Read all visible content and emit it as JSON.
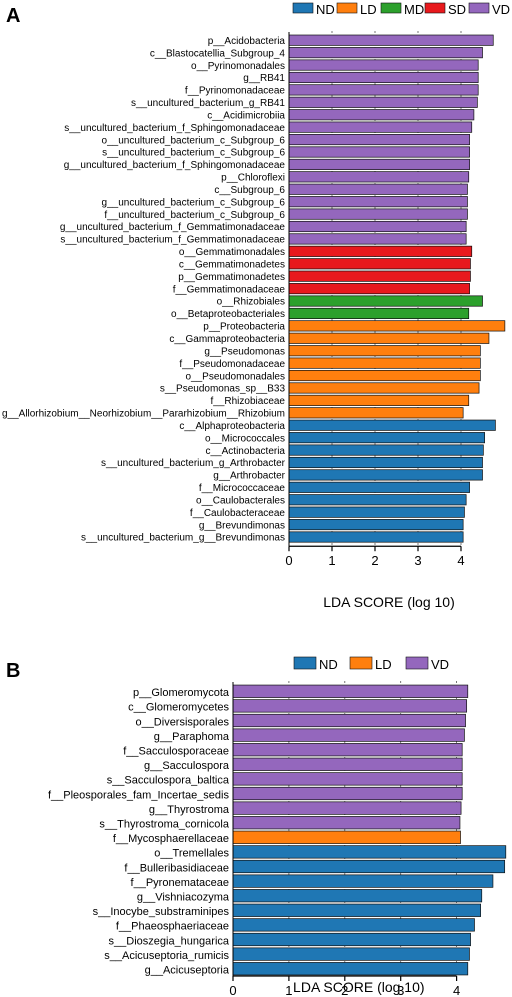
{
  "colors": {
    "ND": "#1f77b4",
    "LD": "#ff7f0e",
    "MD": "#2ca02c",
    "SD": "#e8191d",
    "VD": "#9467bd"
  },
  "chart_data": [
    {
      "panel": "A",
      "type": "bar",
      "orientation": "horizontal",
      "xlabel": "LDA SCORE (log 10)",
      "xlim": [
        0,
        5
      ],
      "xticks": [
        0,
        1,
        2,
        3,
        4
      ],
      "grid": "dashed vertical at ticks",
      "legend": {
        "placement": "top-right",
        "entries": [
          "ND",
          "LD",
          "MD",
          "SD",
          "VD"
        ]
      },
      "bars": [
        {
          "label": "p__Acidobacteria",
          "value": 4.75,
          "group": "VD"
        },
        {
          "label": "c__Blastocatellia_Subgroup_4",
          "value": 4.5,
          "group": "VD"
        },
        {
          "label": "o__Pyrinomonadales",
          "value": 4.4,
          "group": "VD"
        },
        {
          "label": "g__RB41",
          "value": 4.4,
          "group": "VD"
        },
        {
          "label": "f__Pyrinomonadaceae",
          "value": 4.4,
          "group": "VD"
        },
        {
          "label": "s__uncultured_bacterium_g_RB41",
          "value": 4.38,
          "group": "VD"
        },
        {
          "label": "c__Acidimicrobiia",
          "value": 4.3,
          "group": "VD"
        },
        {
          "label": "s__uncultured_bacterium_f_Sphingomonadaceae",
          "value": 4.25,
          "group": "VD"
        },
        {
          "label": "o__uncultured_bacterium_c_Subgroup_6",
          "value": 4.2,
          "group": "VD"
        },
        {
          "label": "s__uncultured_bacterium_c_Subgroup_6",
          "value": 4.2,
          "group": "VD"
        },
        {
          "label": "g__uncultured_bacterium_f_Sphingomonadaceae",
          "value": 4.2,
          "group": "VD"
        },
        {
          "label": "p__Chloroflexi",
          "value": 4.18,
          "group": "VD"
        },
        {
          "label": "c__Subgroup_6",
          "value": 4.15,
          "group": "VD"
        },
        {
          "label": "g__uncultured_bacterium_c_Subgroup_6",
          "value": 4.15,
          "group": "VD"
        },
        {
          "label": "f__uncultured_bacterium_c_Subgroup_6",
          "value": 4.15,
          "group": "VD"
        },
        {
          "label": "g__uncultured_bacterium_f_Gemmatimonadaceae",
          "value": 4.12,
          "group": "VD"
        },
        {
          "label": "s__uncultured_bacterium_f_Gemmatimonadaceae",
          "value": 4.12,
          "group": "VD"
        },
        {
          "label": "o__Gemmatimonadales",
          "value": 4.25,
          "group": "SD"
        },
        {
          "label": "c__Gemmatimonadetes",
          "value": 4.22,
          "group": "SD"
        },
        {
          "label": "p__Gemmatimonadetes",
          "value": 4.22,
          "group": "SD"
        },
        {
          "label": "f__Gemmatimonadaceae",
          "value": 4.2,
          "group": "SD"
        },
        {
          "label": "o__Rhizobiales",
          "value": 4.5,
          "group": "MD"
        },
        {
          "label": "o__Betaproteobacteriales",
          "value": 4.18,
          "group": "MD"
        },
        {
          "label": "p__Proteobacteria",
          "value": 5.02,
          "group": "LD"
        },
        {
          "label": "c__Gammaproteobacteria",
          "value": 4.65,
          "group": "LD"
        },
        {
          "label": "g__Pseudomonas",
          "value": 4.45,
          "group": "LD"
        },
        {
          "label": "f__Pseudomonadaceae",
          "value": 4.45,
          "group": "LD"
        },
        {
          "label": "o__Pseudomonadales",
          "value": 4.45,
          "group": "LD"
        },
        {
          "label": "s__Pseudomonas_sp__B33",
          "value": 4.42,
          "group": "LD"
        },
        {
          "label": "f__Rhizobiaceae",
          "value": 4.18,
          "group": "LD"
        },
        {
          "label": "g__Allorhizobium__Neorhizobium__Pararhizobium__Rhizobium",
          "value": 4.05,
          "group": "LD"
        },
        {
          "label": "c__Alphaproteobacteria",
          "value": 4.8,
          "group": "ND"
        },
        {
          "label": "o__Micrococcales",
          "value": 4.55,
          "group": "ND"
        },
        {
          "label": "c__Actinobacteria",
          "value": 4.52,
          "group": "ND"
        },
        {
          "label": "s__uncultured_bacterium_g_Arthrobacter",
          "value": 4.5,
          "group": "ND"
        },
        {
          "label": "g__Arthrobacter",
          "value": 4.5,
          "group": "ND"
        },
        {
          "label": "f__Micrococcaceae",
          "value": 4.2,
          "group": "ND"
        },
        {
          "label": "o__Caulobacterales",
          "value": 4.12,
          "group": "ND"
        },
        {
          "label": "f__Caulobacteraceae",
          "value": 4.08,
          "group": "ND"
        },
        {
          "label": "g__Brevundimonas",
          "value": 4.05,
          "group": "ND"
        },
        {
          "label": "s__uncultured_bacterium_g__Brevundimonas",
          "value": 4.05,
          "group": "ND"
        }
      ]
    },
    {
      "panel": "B",
      "type": "bar",
      "orientation": "horizontal",
      "xlabel": "LDA SCORE (log 10)",
      "xlim": [
        0,
        4.95
      ],
      "xticks": [
        0,
        1,
        2,
        3,
        4
      ],
      "grid": "dashed vertical at ticks",
      "legend": {
        "placement": "top-right",
        "entries": [
          "ND",
          "LD",
          "VD"
        ]
      },
      "bars": [
        {
          "label": "p__Glomeromycota",
          "value": 4.2,
          "group": "VD"
        },
        {
          "label": "c__Glomeromycetes",
          "value": 4.18,
          "group": "VD"
        },
        {
          "label": "o__Diversisporales",
          "value": 4.16,
          "group": "VD"
        },
        {
          "label": "g__Paraphoma",
          "value": 4.14,
          "group": "VD"
        },
        {
          "label": "f__Sacculosporaceae",
          "value": 4.1,
          "group": "VD"
        },
        {
          "label": "g__Sacculospora",
          "value": 4.1,
          "group": "VD"
        },
        {
          "label": "s__Sacculospora_baltica",
          "value": 4.1,
          "group": "VD"
        },
        {
          "label": "f__Pleosporales_fam_Incertae_sedis",
          "value": 4.1,
          "group": "VD"
        },
        {
          "label": "g__Thyrostroma",
          "value": 4.08,
          "group": "VD"
        },
        {
          "label": "s__Thyrostroma_cornicola",
          "value": 4.06,
          "group": "VD"
        },
        {
          "label": "f__Mycosphaerellaceae",
          "value": 4.07,
          "group": "LD"
        },
        {
          "label": "o__Tremellales",
          "value": 4.88,
          "group": "ND"
        },
        {
          "label": "f__Bulleribasidiaceae",
          "value": 4.86,
          "group": "ND"
        },
        {
          "label": "f__Pyronemataceae",
          "value": 4.65,
          "group": "ND"
        },
        {
          "label": "g__Vishniacozyma",
          "value": 4.45,
          "group": "ND"
        },
        {
          "label": "s__Inocybe_substraminipes",
          "value": 4.43,
          "group": "ND"
        },
        {
          "label": "f__Phaeosphaeriaceae",
          "value": 4.32,
          "group": "ND"
        },
        {
          "label": "s__Dioszegia_hungarica",
          "value": 4.25,
          "group": "ND"
        },
        {
          "label": "s__Acicuseptoria_rumicis",
          "value": 4.23,
          "group": "ND"
        },
        {
          "label": "g__Acicuseptoria",
          "value": 4.2,
          "group": "ND"
        }
      ]
    }
  ]
}
